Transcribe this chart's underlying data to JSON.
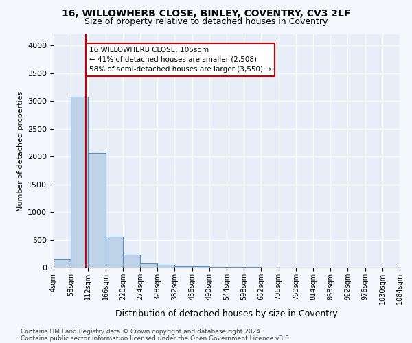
{
  "title_line1": "16, WILLOWHERB CLOSE, BINLEY, COVENTRY, CV3 2LF",
  "title_line2": "Size of property relative to detached houses in Coventry",
  "xlabel": "Distribution of detached houses by size in Coventry",
  "ylabel": "Number of detached properties",
  "bins": [
    4,
    58,
    112,
    166,
    220,
    274,
    328,
    382,
    436,
    490,
    544,
    598,
    652,
    706,
    760,
    814,
    868,
    922,
    976,
    1030,
    1084
  ],
  "bin_labels": [
    "4sqm",
    "58sqm",
    "112sqm",
    "166sqm",
    "220sqm",
    "274sqm",
    "328sqm",
    "382sqm",
    "436sqm",
    "490sqm",
    "544sqm",
    "598sqm",
    "652sqm",
    "706sqm",
    "760sqm",
    "814sqm",
    "868sqm",
    "922sqm",
    "976sqm",
    "1030sqm",
    "1084sqm"
  ],
  "counts": [
    150,
    3070,
    2060,
    560,
    235,
    80,
    55,
    30,
    20,
    15,
    10,
    8,
    6,
    4,
    3,
    2,
    2,
    1,
    1,
    1
  ],
  "bar_color": "#bed3e8",
  "bar_edge_color": "#5b8ec4",
  "property_size": 105,
  "property_line_color": "#cc0000",
  "annotation_text": "16 WILLOWHERB CLOSE: 105sqm\n← 41% of detached houses are smaller (2,508)\n58% of semi-detached houses are larger (3,550) →",
  "annotation_box_color": "#ffffff",
  "annotation_box_edge_color": "#cc0000",
  "ylim": [
    0,
    4200
  ],
  "yticks": [
    0,
    500,
    1000,
    1500,
    2000,
    2500,
    3000,
    3500,
    4000
  ],
  "footnote_line1": "Contains HM Land Registry data © Crown copyright and database right 2024.",
  "footnote_line2": "Contains public sector information licensed under the Open Government Licence v3.0.",
  "fig_bg_color": "#f4f7fc",
  "plot_bg_color": "#e8eef7",
  "grid_color": "#ffffff"
}
